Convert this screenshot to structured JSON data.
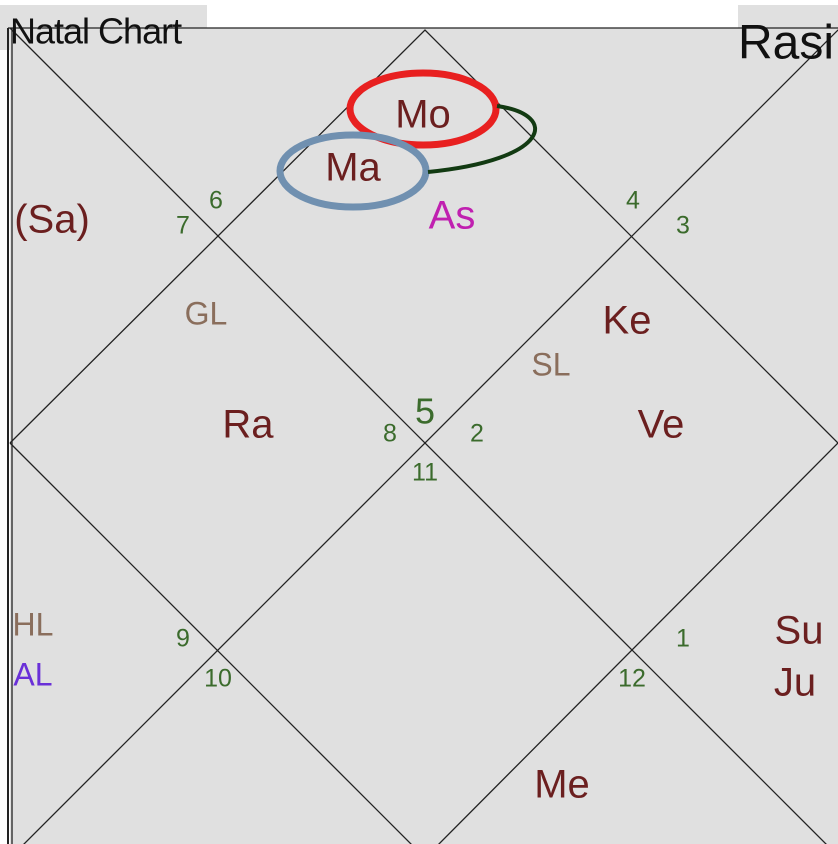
{
  "header": {
    "title": "Natal Chart",
    "chart_name": "Rasi"
  },
  "houses": [
    "6",
    "7",
    "4",
    "3",
    "8",
    "5",
    "2",
    "11",
    "9",
    "10",
    "1",
    "12"
  ],
  "labels": [
    "Mo",
    "Ma",
    "As",
    "(Sa)",
    "GL",
    "Ke",
    "SL",
    "Ra",
    "Ve",
    "HL",
    "AL",
    "Su",
    "Ju",
    "Me"
  ]
}
